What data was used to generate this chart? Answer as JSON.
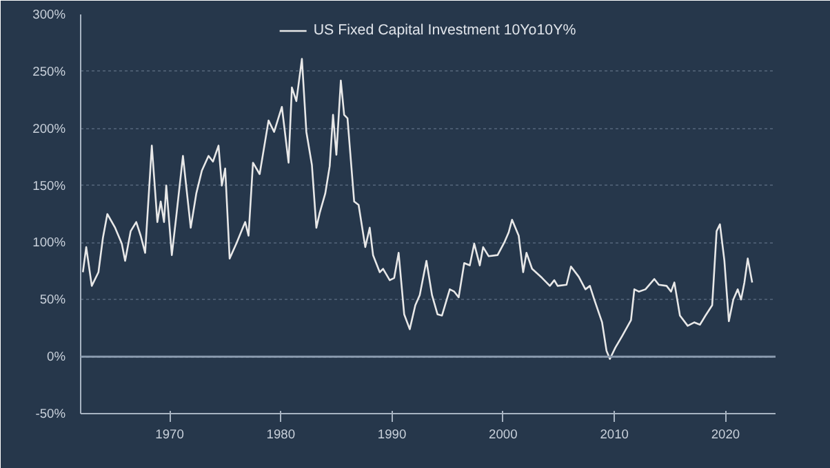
{
  "chart_data": {
    "type": "line",
    "legend": "top",
    "grid": "y",
    "line_style": "solid",
    "xlim": [
      1962,
      2024.5
    ],
    "ylim": [
      -50,
      300
    ],
    "xticks": [
      1970,
      1980,
      1990,
      2000,
      2010,
      2020
    ],
    "yticks": [
      {
        "value": -50,
        "label": "-50%"
      },
      {
        "value": 0,
        "label": "0%"
      },
      {
        "value": 50,
        "label": "50%"
      },
      {
        "value": 100,
        "label": "100%"
      },
      {
        "value": 150,
        "label": "150%"
      },
      {
        "value": 200,
        "label": "200%"
      },
      {
        "value": 250,
        "label": "250%"
      },
      {
        "value": 300,
        "label": "300%"
      }
    ],
    "ref_lines": [
      {
        "axis": "y",
        "value": 0,
        "color": "#8a9aae"
      }
    ],
    "series": [
      {
        "name": "US Fixed Capital Investment 10Yo10Y%",
        "color": "#e8e8e8",
        "x": [
          1962.2,
          1962.5,
          1963.0,
          1963.6,
          1964.0,
          1964.4,
          1965.1,
          1965.7,
          1966.0,
          1966.5,
          1967.0,
          1967.4,
          1967.8,
          1968.4,
          1968.9,
          1969.2,
          1969.5,
          1969.7,
          1970.2,
          1970.6,
          1971.2,
          1971.9,
          1972.4,
          1972.9,
          1973.5,
          1973.9,
          1974.4,
          1974.7,
          1975.0,
          1975.4,
          1976.0,
          1976.8,
          1977.1,
          1977.5,
          1978.1,
          1978.9,
          1979.4,
          1980.1,
          1980.7,
          1981.0,
          1981.4,
          1981.9,
          1982.3,
          1982.8,
          1983.2,
          1983.5,
          1984.0,
          1984.4,
          1984.7,
          1985.0,
          1985.4,
          1985.7,
          1986.0,
          1986.6,
          1987.0,
          1987.6,
          1988.0,
          1988.3,
          1988.9,
          1989.2,
          1989.8,
          1990.2,
          1990.6,
          1991.1,
          1991.6,
          1992.1,
          1992.5,
          1993.1,
          1993.6,
          1994.1,
          1994.5,
          1995.2,
          1995.6,
          1996.0,
          1996.5,
          1997.0,
          1997.4,
          1997.9,
          1998.2,
          1998.7,
          1999.5,
          2000.1,
          2000.5,
          2000.8,
          2001.4,
          2001.8,
          2002.1,
          2002.6,
          2003.5,
          2004.2,
          2004.6,
          2004.9,
          2005.7,
          2006.1,
          2006.8,
          2007.4,
          2007.8,
          2008.2,
          2008.9,
          2009.3,
          2009.6,
          2010.1,
          2010.7,
          2011.5,
          2011.8,
          2012.2,
          2012.8,
          2013.6,
          2014.0,
          2014.7,
          2015.1,
          2015.4,
          2015.9,
          2016.6,
          2017.2,
          2017.7,
          2018.2,
          2018.8,
          2019.2,
          2019.5,
          2019.9,
          2020.3,
          2020.7,
          2021.1,
          2021.4,
          2021.7,
          2022.0,
          2022.4
        ],
        "values": [
          74,
          96,
          62,
          74,
          104,
          125,
          113,
          99,
          84,
          110,
          118,
          106,
          91,
          185,
          118,
          136,
          118,
          150,
          89,
          123,
          176,
          113,
          143,
          163,
          176,
          171,
          185,
          150,
          165,
          86,
          99,
          118,
          106,
          170,
          160,
          207,
          197,
          219,
          170,
          236,
          224,
          261,
          197,
          168,
          113,
          126,
          143,
          167,
          212,
          177,
          242,
          212,
          209,
          136,
          133,
          96,
          113,
          89,
          74,
          77,
          67,
          69,
          91,
          37,
          24,
          45,
          54,
          84,
          54,
          37,
          36,
          59,
          57,
          52,
          82,
          80,
          99,
          80,
          96,
          88,
          89,
          100,
          109,
          120,
          106,
          74,
          91,
          77,
          69,
          62,
          67,
          62,
          63,
          79,
          70,
          59,
          62,
          50,
          30,
          5,
          -2,
          8,
          18,
          32,
          59,
          57,
          59,
          68,
          63,
          62,
          57,
          65,
          36,
          27,
          30,
          28,
          36,
          45,
          110,
          116,
          84,
          31,
          50,
          59,
          50,
          65,
          86,
          65
        ]
      }
    ]
  }
}
